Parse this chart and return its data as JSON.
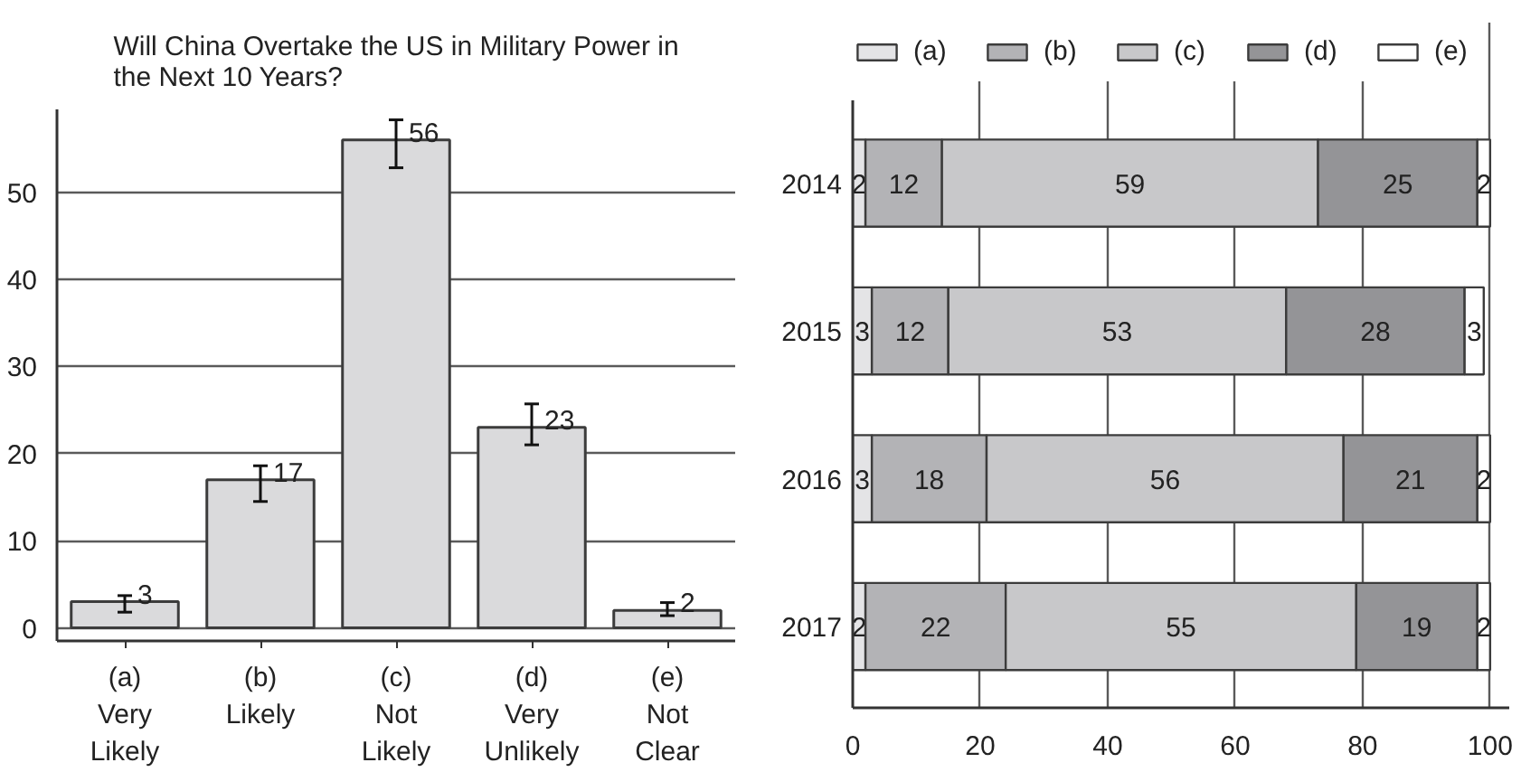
{
  "chart_data": [
    {
      "type": "bar",
      "title": "Will China Overtake the US in Military Power in\nthe Next 10 Years?",
      "categories": [
        "(a)\nVery\nLikely",
        "(b)\nLikely",
        "(c)\nNot\nLikely",
        "(d)\nVery\nUnlikely",
        "(e)\nNot\nClear"
      ],
      "values": [
        3,
        17,
        56,
        23,
        2
      ],
      "errors": [
        [
          1.8,
          3.7
        ],
        [
          14.5,
          18.6
        ],
        [
          52.8,
          58.3
        ],
        [
          21.0,
          25.7
        ],
        [
          1.4,
          2.9
        ]
      ],
      "color": "#dadadc",
      "data_labels": true,
      "ylim": [
        -1.5,
        59.5
      ],
      "yticks": [
        0,
        10,
        20,
        30,
        40,
        50
      ],
      "grid": "y"
    },
    {
      "type": "bar",
      "orientation": "horizontal",
      "stacked": true,
      "categories": [
        "2014",
        "2015",
        "2016",
        "2017"
      ],
      "series": [
        {
          "name": "(a)",
          "color": "#e4e4e6",
          "values": [
            2,
            3,
            3,
            2
          ]
        },
        {
          "name": "(b)",
          "color": "#b3b3b6",
          "values": [
            12,
            12,
            18,
            22
          ]
        },
        {
          "name": "(c)",
          "color": "#c8c8ca",
          "values": [
            59,
            53,
            56,
            55
          ]
        },
        {
          "name": "(d)",
          "color": "#949497",
          "values": [
            25,
            28,
            21,
            19
          ]
        },
        {
          "name": "(e)",
          "color": "#ffffff",
          "values": [
            2,
            3,
            2,
            2
          ]
        }
      ],
      "data_labels": true,
      "xlim": [
        0,
        103
      ],
      "xticks": [
        0,
        20,
        40,
        60,
        80,
        100
      ],
      "grid": "x",
      "legend": "top"
    }
  ]
}
